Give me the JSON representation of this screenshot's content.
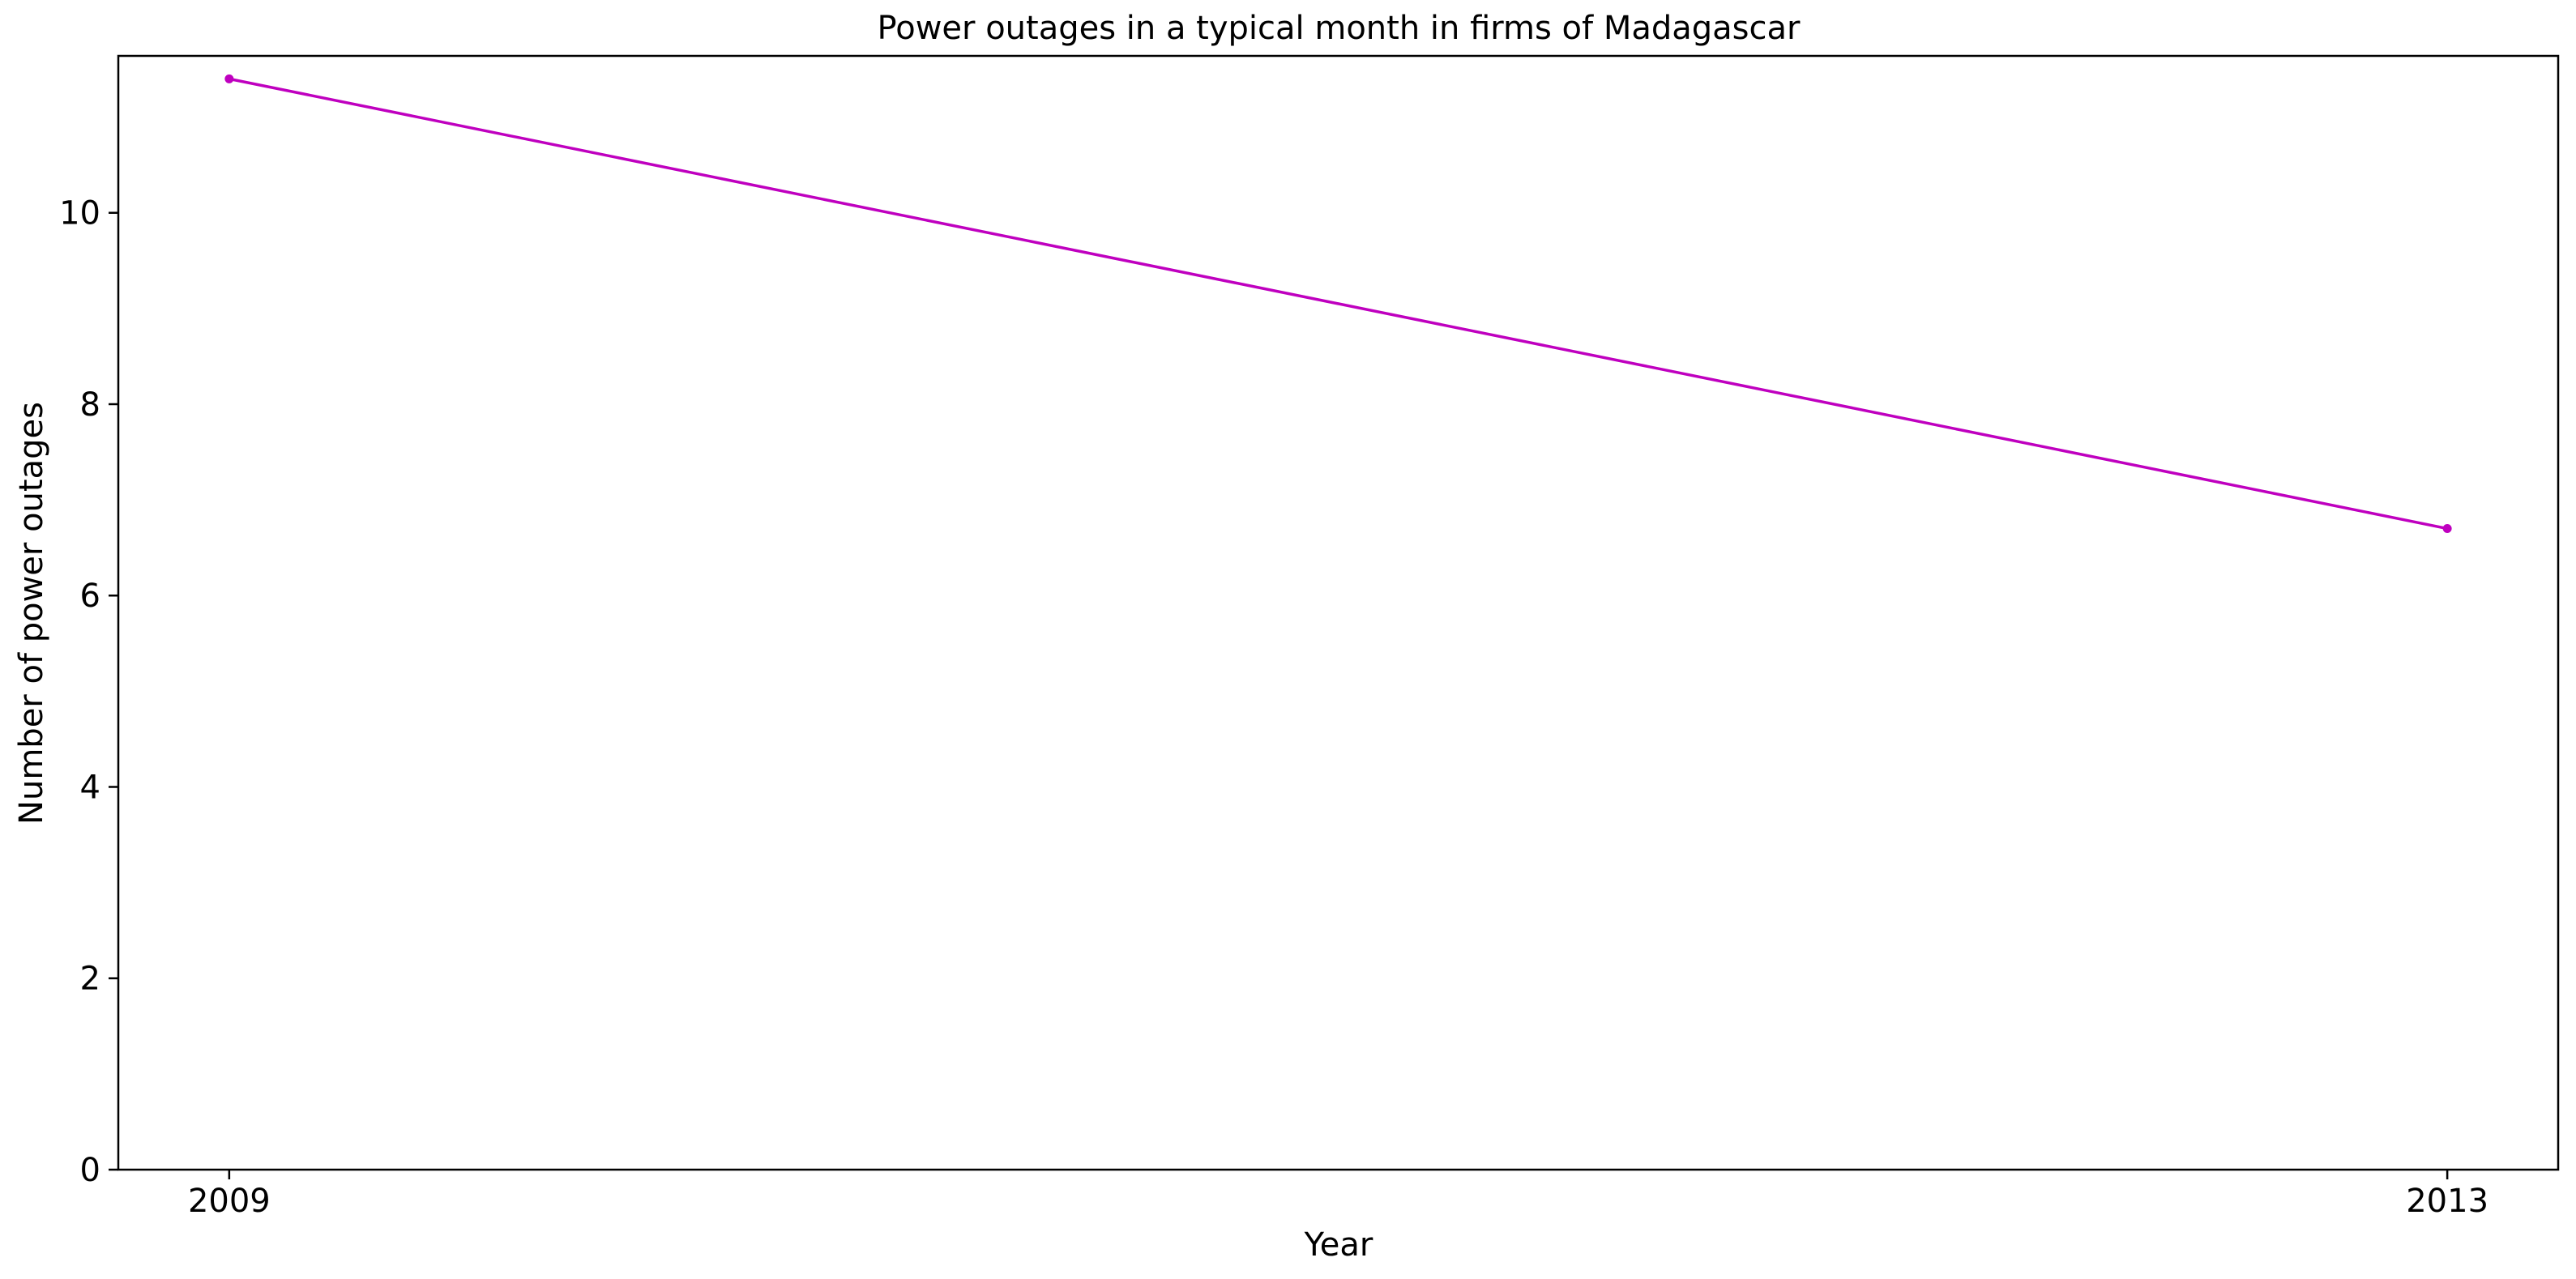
{
  "chart_data": {
    "type": "line",
    "title": "Power outages in a typical month in firms of Madagascar",
    "xlabel": "Year",
    "ylabel": "Number of power outages",
    "x": [
      "2009",
      "2013"
    ],
    "x_values": [
      2009,
      2013
    ],
    "xlim": [
      2008.8,
      2013.2
    ],
    "series": [
      {
        "values": [
          11.4,
          6.7
        ],
        "color": "#bf00bf",
        "marker": "circle"
      }
    ],
    "ylim": [
      0,
      11.64
    ],
    "yticks": [
      0,
      2,
      4,
      6,
      8,
      10
    ],
    "grid": false,
    "legend": "none"
  }
}
